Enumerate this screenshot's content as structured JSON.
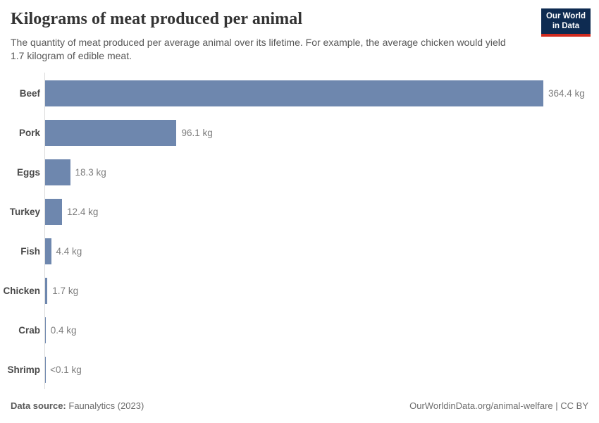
{
  "header": {
    "title": "Kilograms of meat produced per animal",
    "subtitle": "The quantity of meat produced per average animal over its lifetime. For example, the average chicken would yield 1.7 kilogram of edible meat.",
    "logo": {
      "line1": "Our World",
      "line2": "in Data",
      "bg_color": "#0e2b51",
      "accent_color": "#d12b1f"
    }
  },
  "chart_data": {
    "type": "bar",
    "orientation": "horizontal",
    "title": "Kilograms of meat produced per animal",
    "categories": [
      "Beef",
      "Pork",
      "Eggs",
      "Turkey",
      "Fish",
      "Chicken",
      "Crab",
      "Shrimp"
    ],
    "values": [
      364.4,
      96.1,
      18.3,
      12.4,
      4.4,
      1.7,
      0.4,
      0.05
    ],
    "value_labels": [
      "364.4 kg",
      "96.1 kg",
      "18.3 kg",
      "12.4 kg",
      "4.4 kg",
      "1.7 kg",
      "0.4 kg",
      "<0.1 kg"
    ],
    "unit": "kg",
    "xlim": [
      0,
      380
    ],
    "bar_color": "#6e87ae",
    "axis_color": "#dcdcdc",
    "grid": false,
    "legend": false
  },
  "footer": {
    "data_source_label": "Data source:",
    "data_source_value": "Faunalytics (2023)",
    "url": "OurWorldinData.org/animal-welfare",
    "separator": " | ",
    "license": "CC BY"
  }
}
